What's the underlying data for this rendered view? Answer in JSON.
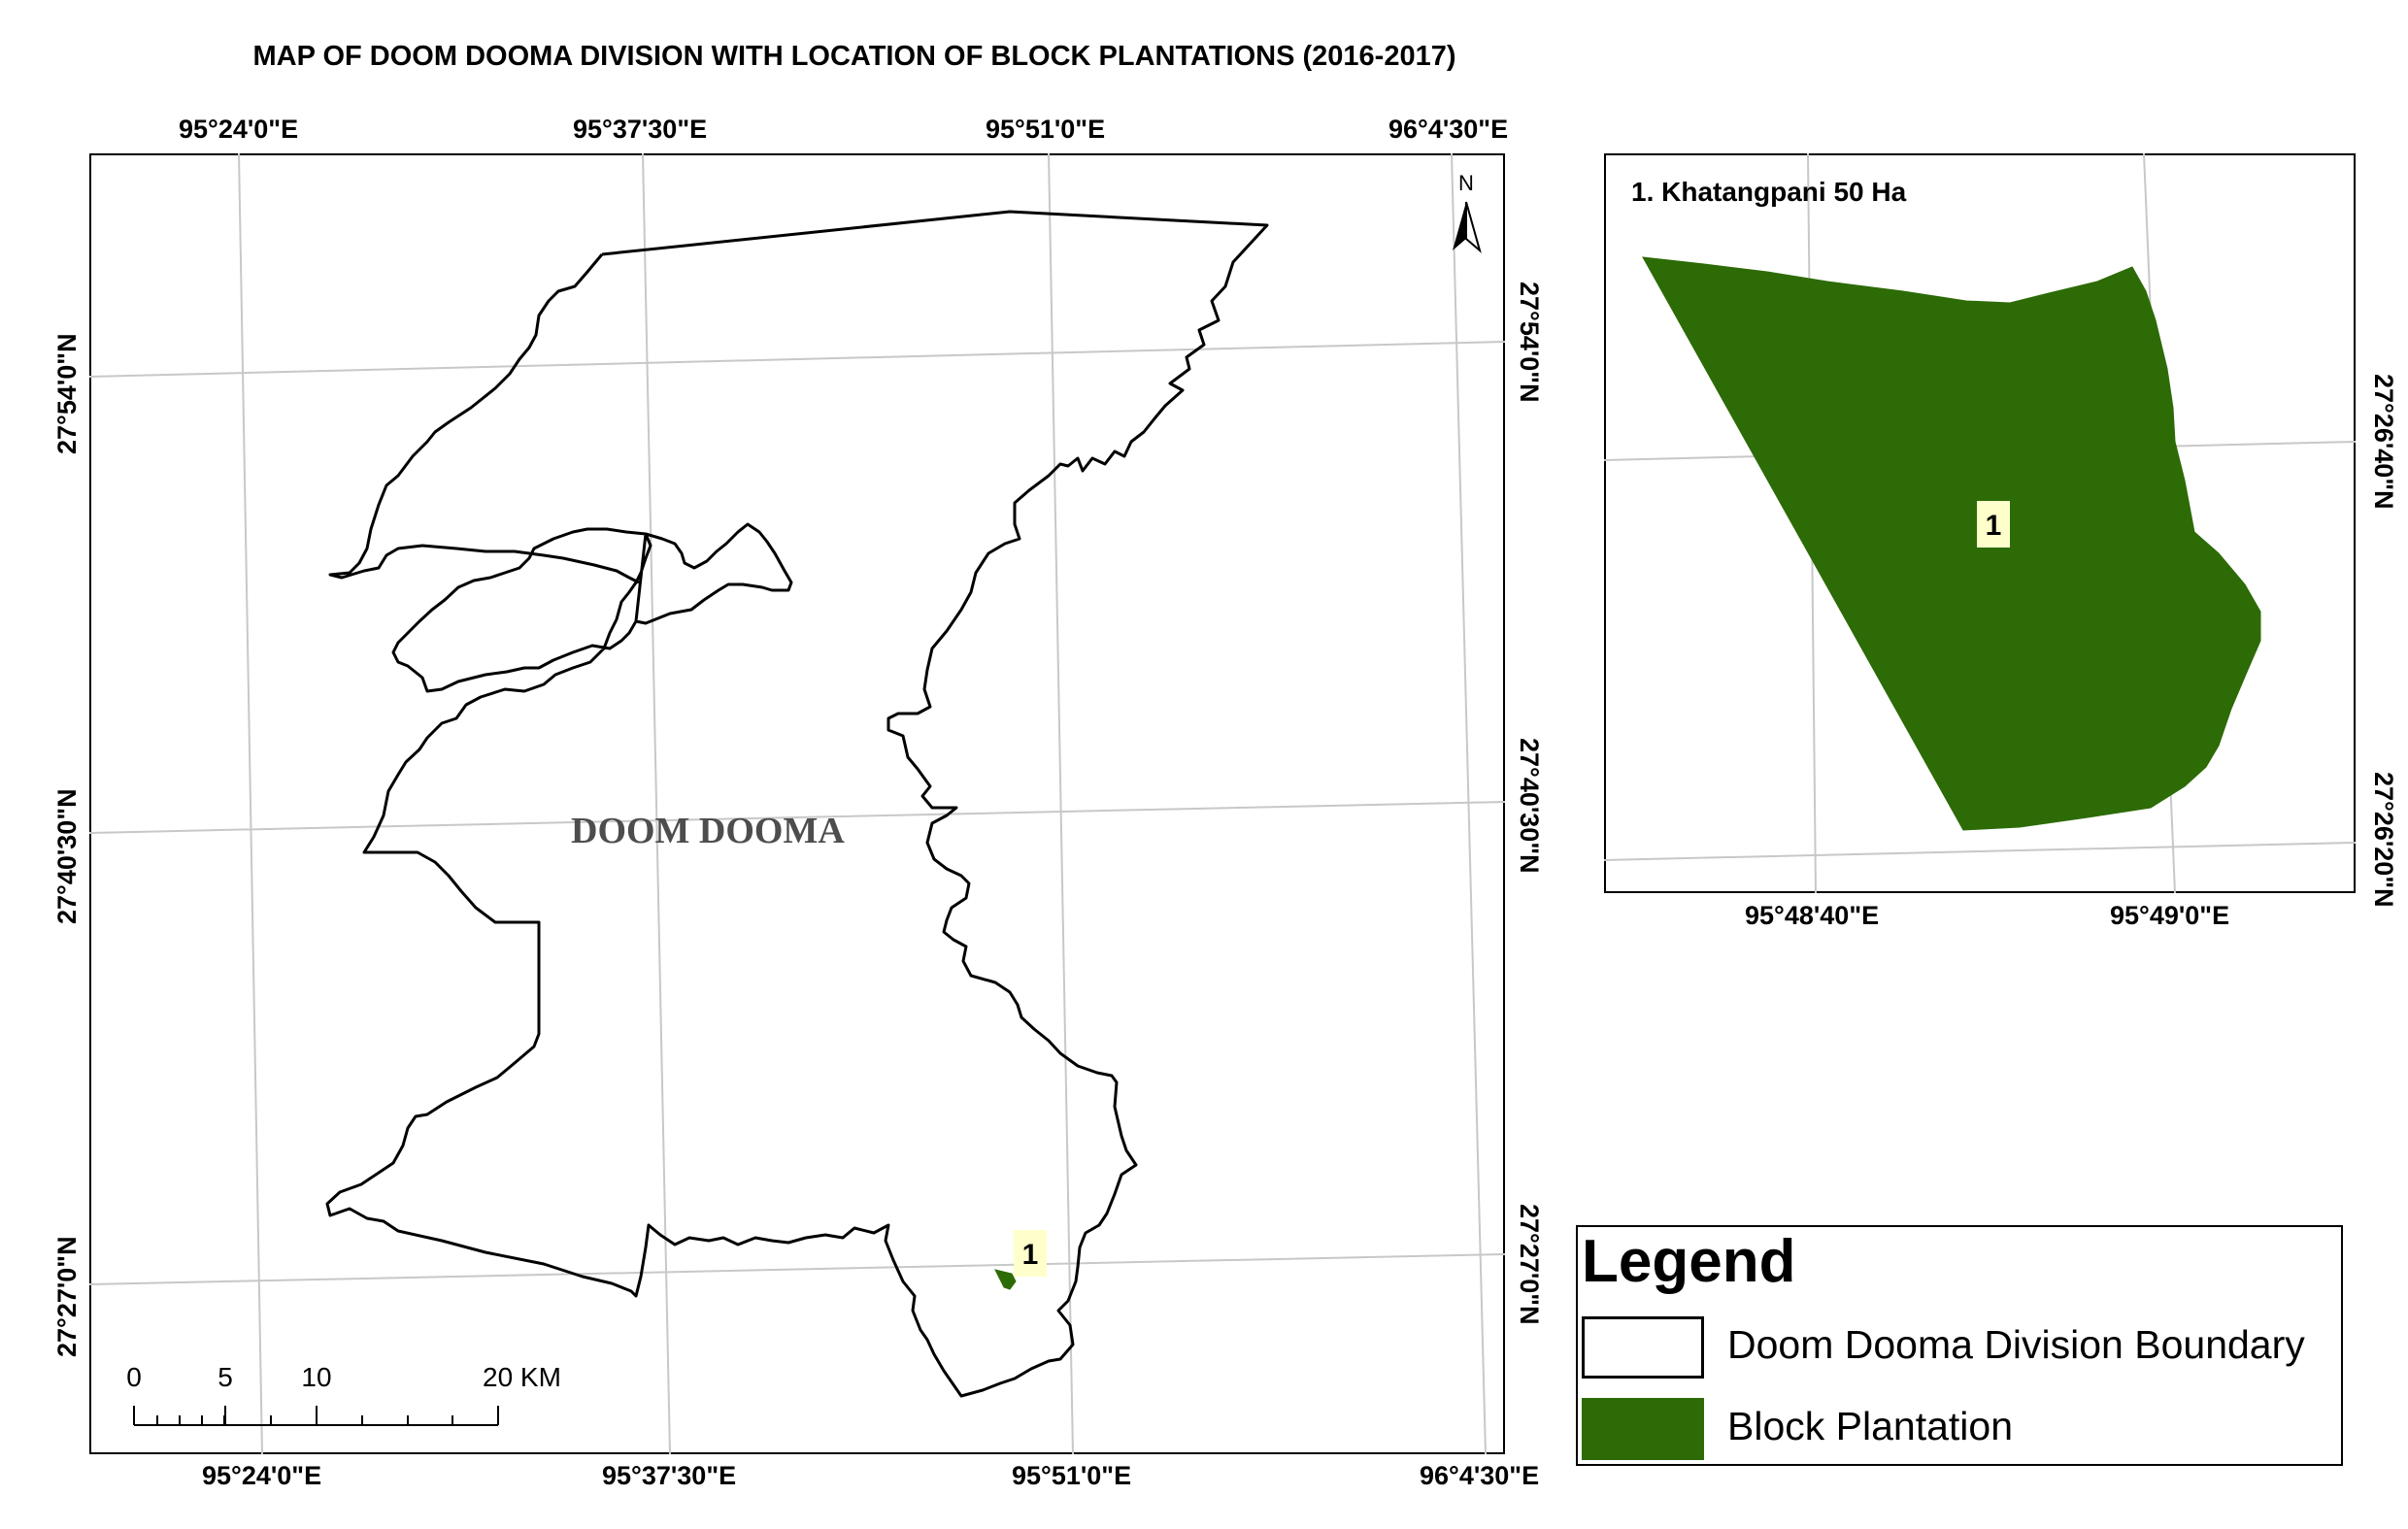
{
  "title": "MAP OF DOOM DOOMA DIVISION WITH LOCATION OF BLOCK PLANTATIONS (2016-2017)",
  "main_map": {
    "top_ticks": [
      "95°24'0\"E",
      "95°37'30\"E",
      "95°51'0\"E",
      "96°4'30\"E"
    ],
    "bottom_ticks": [
      "95°24'0\"E",
      "95°37'30\"E",
      "95°51'0\"E",
      "96°4'30\"E"
    ],
    "left_ticks": [
      "27°54'0\"N",
      "27°40'30\"N",
      "27°27'0\"N"
    ],
    "right_ticks": [
      "27°54'0\"N",
      "27°40'30\"N",
      "27°27'0\"N"
    ],
    "region_label": "DOOM DOOMA",
    "plantation_marker": "1",
    "north_label": "N",
    "scale_labels": [
      "0",
      "5",
      "10",
      "20 KM"
    ]
  },
  "inset_map": {
    "title": "1. Khatangpani 50 Ha",
    "marker": "1",
    "bottom_ticks": [
      "95°48'40\"E",
      "95°49'0\"E"
    ],
    "right_ticks": [
      "27°26'40\"N",
      "27°26'20\"N"
    ]
  },
  "legend": {
    "title": "Legend",
    "items": [
      {
        "label": "Doom Dooma Division Boundary",
        "fill": "#ffffff"
      },
      {
        "label": "Block Plantation",
        "fill": "#2d6b06"
      }
    ]
  },
  "colors": {
    "plantation": "#2d6b06",
    "marker_bg": "#ffffcc",
    "boundary": "#000000",
    "graticule": "#c8c8c8"
  }
}
